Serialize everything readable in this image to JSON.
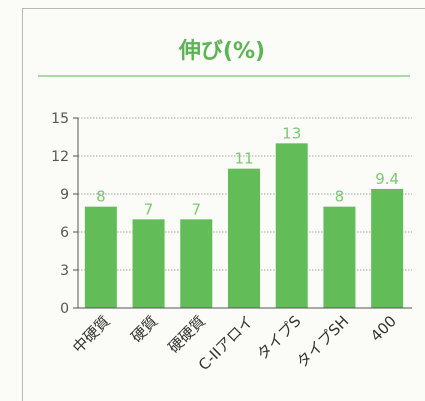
{
  "chart_data": {
    "type": "bar",
    "title": "伸び(%)",
    "categories": [
      "中硬質",
      "硬質",
      "硬硬質",
      "C-IIアロイ",
      "タイプS",
      "タイプSH",
      "400"
    ],
    "values": [
      8,
      7,
      7,
      11,
      13,
      8,
      9.4
    ],
    "data_labels": [
      "8",
      "7",
      "7",
      "11",
      "13",
      "8",
      "9.4"
    ],
    "ylim": [
      0,
      15
    ],
    "yticks": [
      "0",
      "3",
      "6",
      "9",
      "12",
      "15"
    ],
    "grid": true,
    "xlabel": "",
    "ylabel": "",
    "colors": {
      "bar": "#62bd58",
      "title": "#5cb455",
      "title_rule": "#8fd08a",
      "label": "#7cc874",
      "grid": "#8a8a8a",
      "axis": "#555555",
      "tick_text": "#555555",
      "category_text": "#333333"
    }
  }
}
